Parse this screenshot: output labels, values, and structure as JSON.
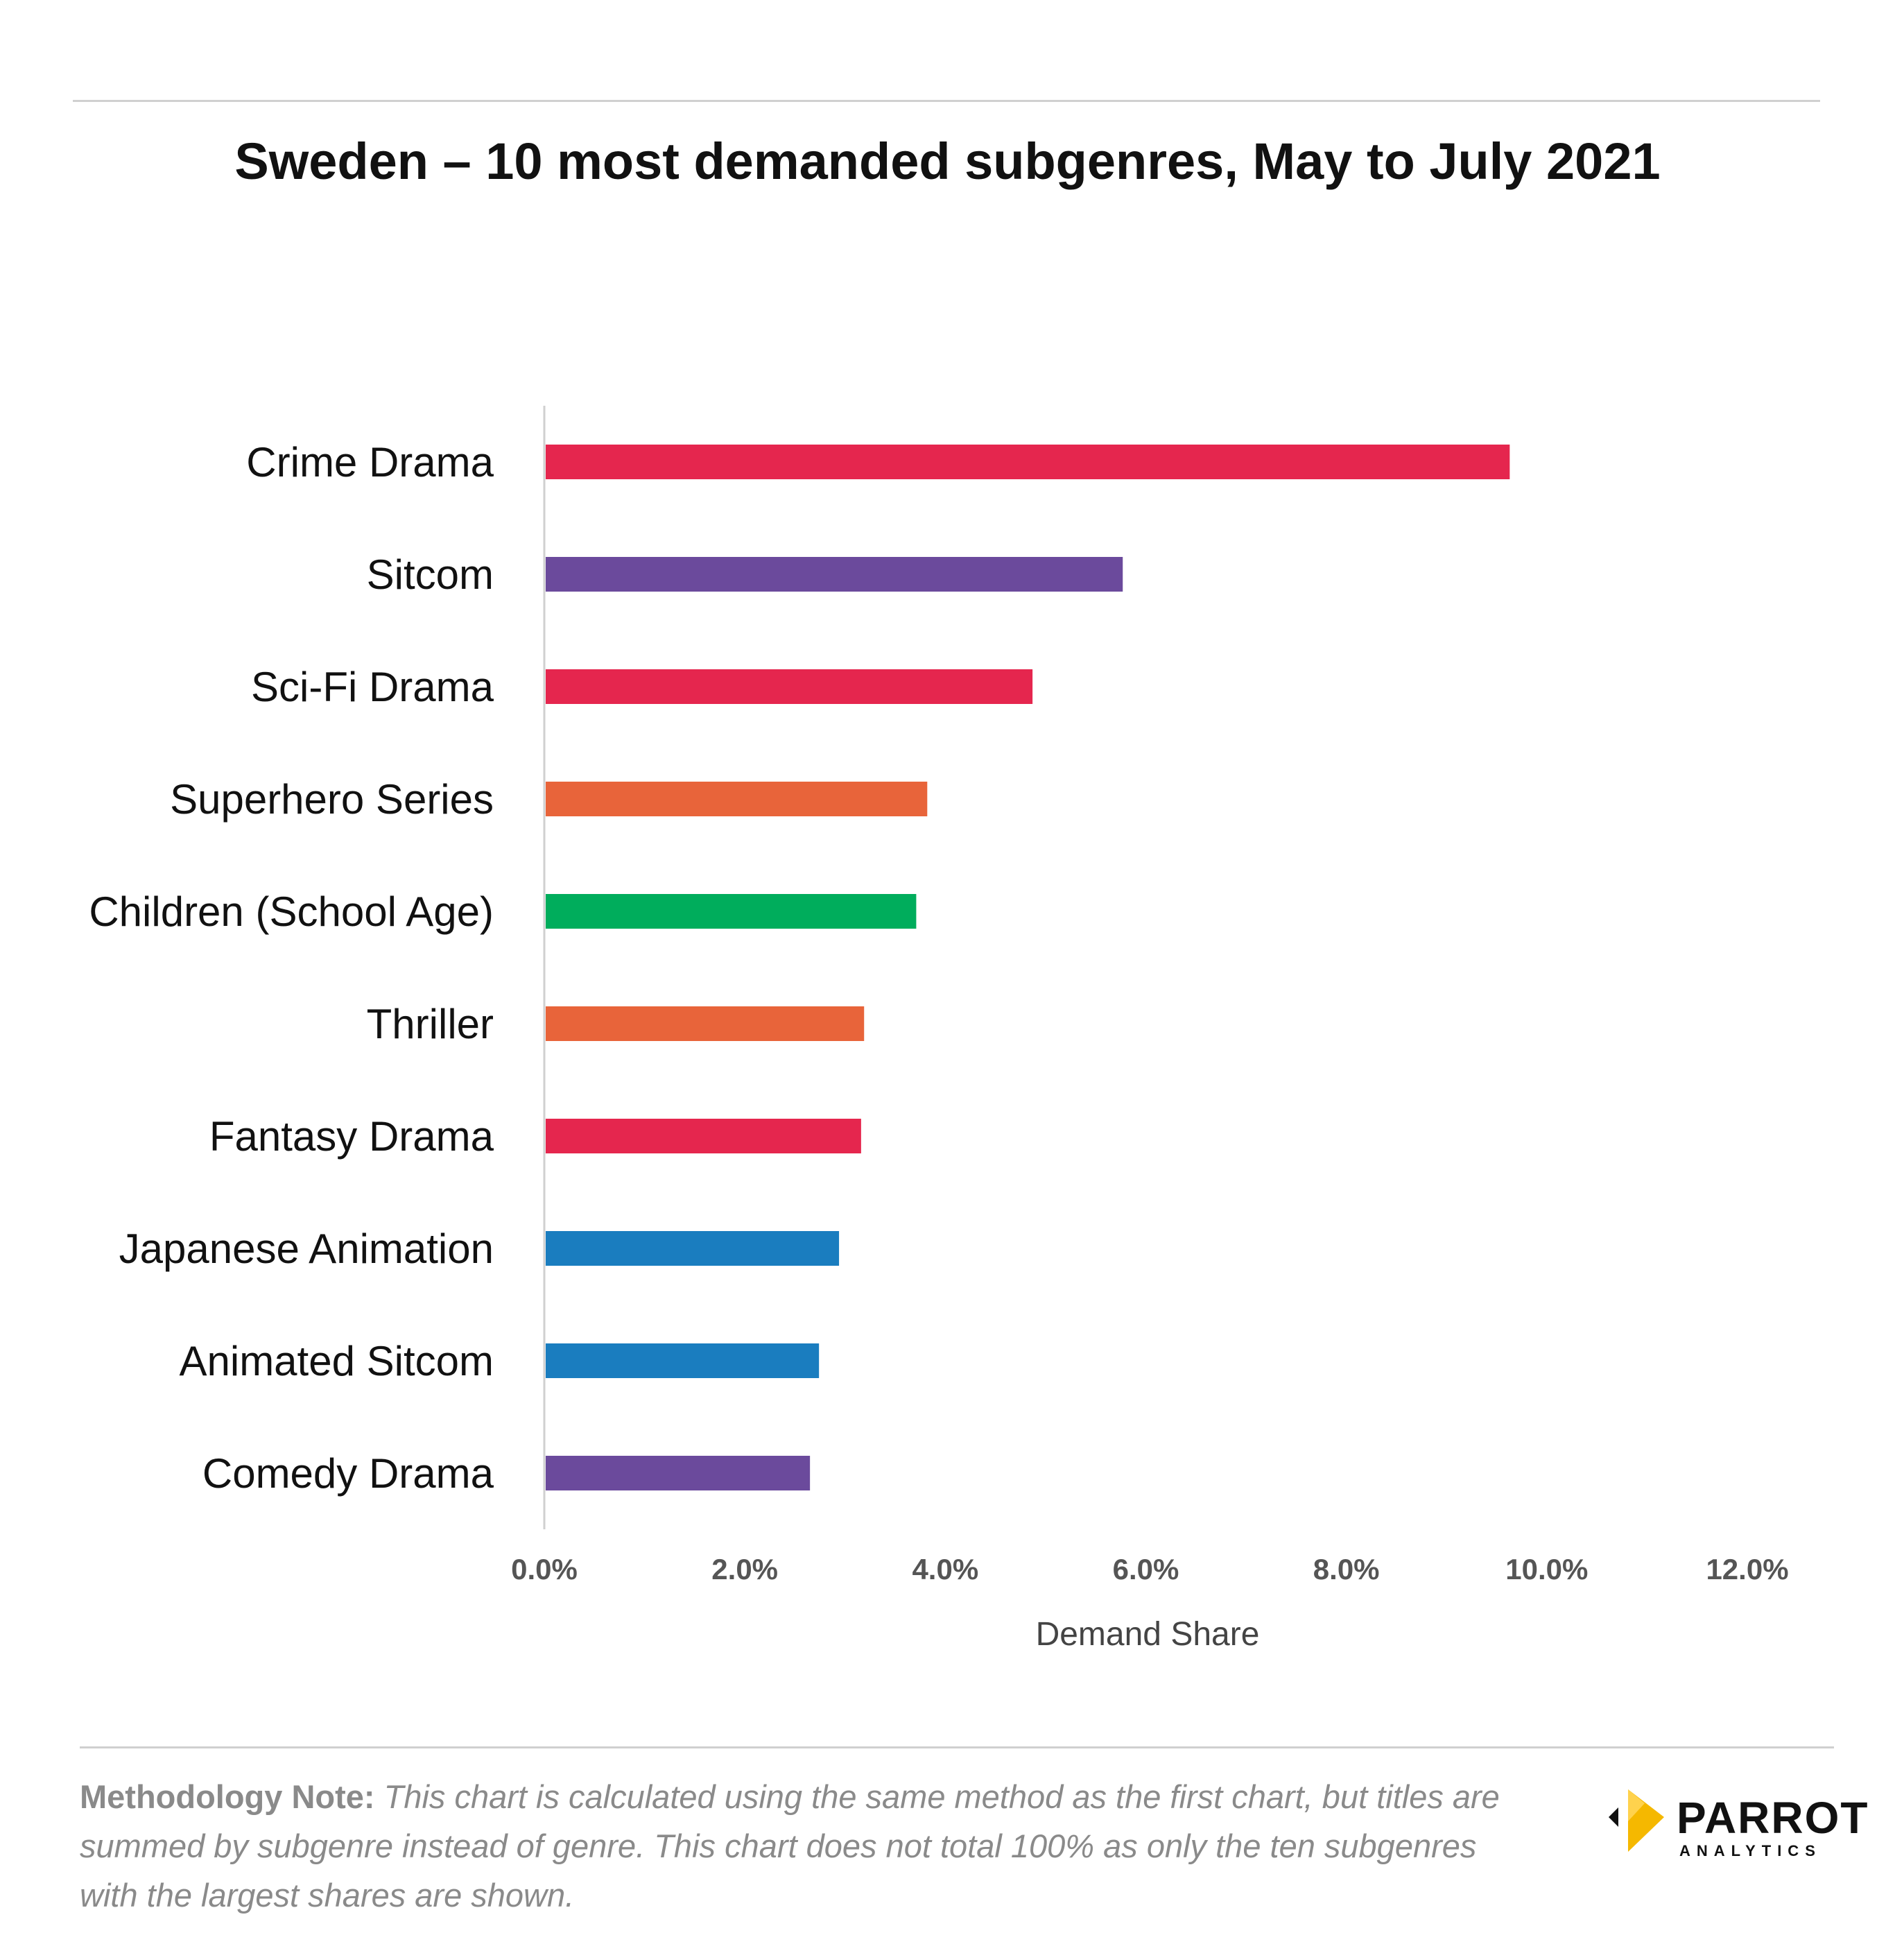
{
  "chart_data": {
    "type": "bar",
    "orientation": "horizontal",
    "title": "Sweden – 10 most demanded subgenres, May to July 2021",
    "xlabel": "Demand Share",
    "ylabel": "",
    "xlim": [
      0,
      12
    ],
    "x_ticks": [
      "0.0%",
      "2.0%",
      "4.0%",
      "6.0%",
      "8.0%",
      "10.0%",
      "12.0%"
    ],
    "grid": false,
    "legend": "none",
    "categories": [
      "Crime Drama",
      "Sitcom",
      "Sci-Fi Drama",
      "Superhero Series",
      "Children (School Age)",
      "Thriller",
      "Fantasy Drama",
      "Japanese Animation",
      "Animated Sitcom",
      "Comedy Drama"
    ],
    "values": [
      9.63,
      5.77,
      4.87,
      3.82,
      3.71,
      3.19,
      3.16,
      2.94,
      2.74,
      2.65
    ],
    "colors": [
      "#e5264e",
      "#6b4a9c",
      "#e5264e",
      "#e8643a",
      "#00ad5c",
      "#e8643a",
      "#e5264e",
      "#1a7dbf",
      "#1a7dbf",
      "#6b4a9c"
    ]
  },
  "note": {
    "label": "Methodology Note:",
    "text": "This chart is calculated using the same method as the first chart, but titles are summed by subgenre instead of genre. This chart does not total 100% as only the ten subgenres with the largest shares are shown."
  },
  "logo": {
    "name": "PARROT",
    "sub": "ANALYTICS",
    "icon": "parrot-logo-icon",
    "colors": {
      "primary": "#f5b800",
      "arrow": "#111111"
    }
  }
}
